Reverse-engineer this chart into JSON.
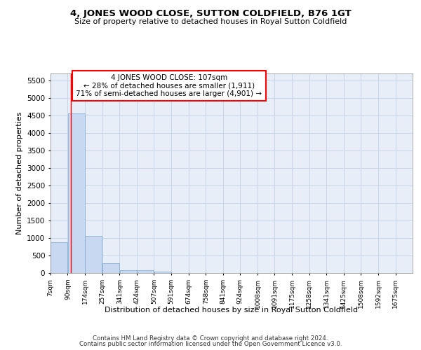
{
  "title": "4, JONES WOOD CLOSE, SUTTON COLDFIELD, B76 1GT",
  "subtitle": "Size of property relative to detached houses in Royal Sutton Coldfield",
  "xlabel": "Distribution of detached houses by size in Royal Sutton Coldfield",
  "ylabel": "Number of detached properties",
  "footer_line1": "Contains HM Land Registry data © Crown copyright and database right 2024.",
  "footer_line2": "Contains public sector information licensed under the Open Government Licence v3.0.",
  "annotation_line1": "4 JONES WOOD CLOSE: 107sqm",
  "annotation_line2": "← 28% of detached houses are smaller (1,911)",
  "annotation_line3": "71% of semi-detached houses are larger (4,901) →",
  "bar_left_edges": [
    7,
    90,
    174,
    257,
    341,
    424,
    507,
    591,
    674,
    758,
    841,
    924,
    1008,
    1091,
    1175,
    1258,
    1341,
    1425,
    1508,
    1592
  ],
  "bar_widths": [
    83,
    84,
    83,
    84,
    83,
    83,
    84,
    83,
    84,
    83,
    83,
    84,
    83,
    84,
    83,
    83,
    84,
    83,
    84,
    83
  ],
  "bar_heights": [
    880,
    4560,
    1060,
    275,
    80,
    80,
    50,
    0,
    0,
    0,
    0,
    0,
    0,
    0,
    0,
    0,
    0,
    0,
    0,
    0
  ],
  "bar_color": "#c8d8f0",
  "bar_edge_color": "#7aaad0",
  "grid_color": "#c8d4e8",
  "background_color": "#e8eef8",
  "red_line_x": 107,
  "ylim": [
    0,
    5700
  ],
  "yticks": [
    0,
    500,
    1000,
    1500,
    2000,
    2500,
    3000,
    3500,
    4000,
    4500,
    5000,
    5500
  ],
  "x_tick_labels": [
    "7sqm",
    "90sqm",
    "174sqm",
    "257sqm",
    "341sqm",
    "424sqm",
    "507sqm",
    "591sqm",
    "674sqm",
    "758sqm",
    "841sqm",
    "924sqm",
    "1008sqm",
    "1091sqm",
    "1175sqm",
    "1258sqm",
    "1341sqm",
    "1425sqm",
    "1508sqm",
    "1592sqm",
    "1675sqm"
  ],
  "x_tick_positions": [
    7,
    90,
    174,
    257,
    341,
    424,
    507,
    591,
    674,
    758,
    841,
    924,
    1008,
    1091,
    1175,
    1258,
    1341,
    1425,
    1508,
    1592,
    1675
  ],
  "xlim": [
    7,
    1758
  ]
}
